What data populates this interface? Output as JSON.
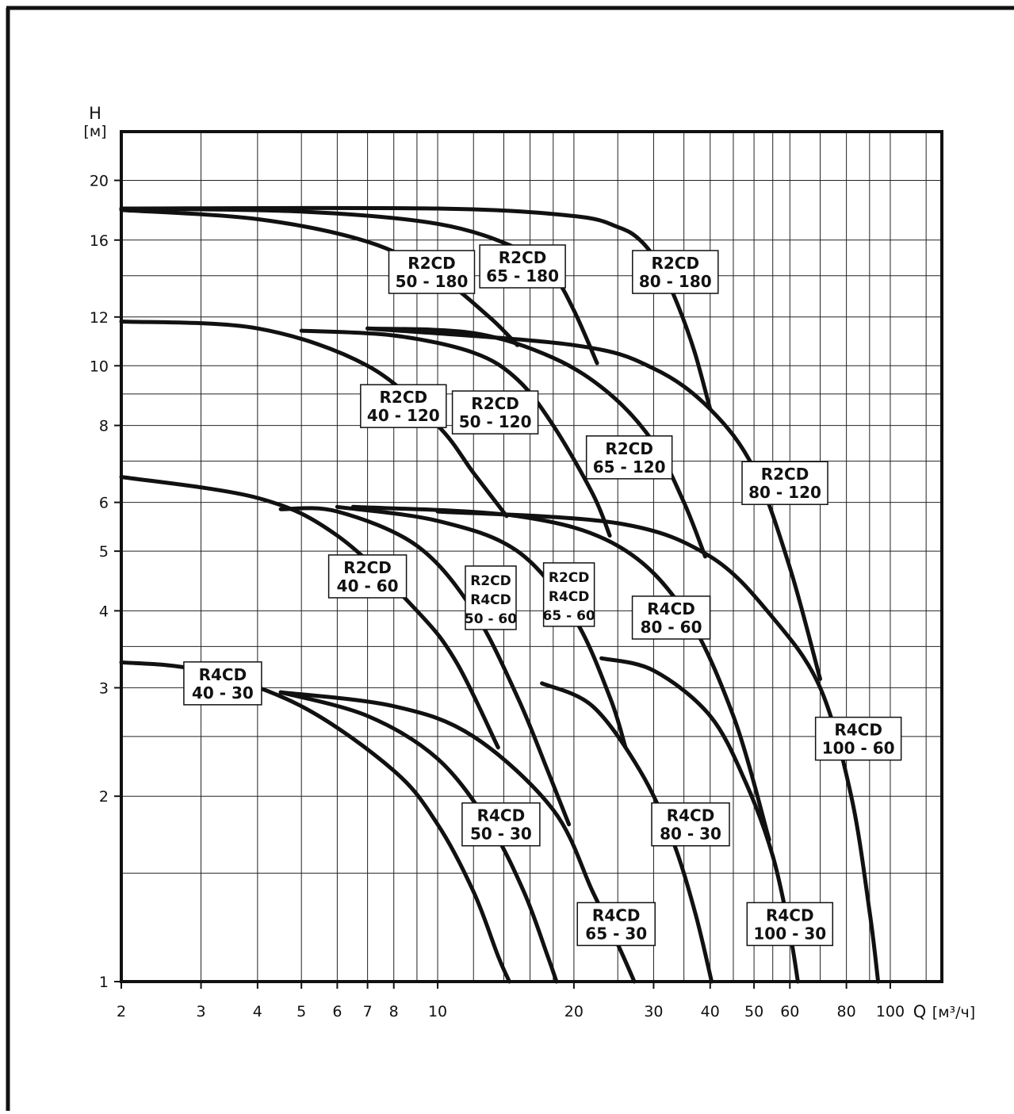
{
  "chart_data": {
    "type": "line",
    "title": "",
    "ylabel": "H",
    "yunit": "[м]",
    "xlabel": "Q",
    "xunit": "[м³/ч]",
    "xscale": "log",
    "yscale": "log",
    "xlim": [
      2,
      130
    ],
    "ylim": [
      1,
      24
    ],
    "grid": true,
    "x_major_ticks": [
      2,
      3,
      4,
      5,
      6,
      7,
      8,
      10,
      20,
      30,
      40,
      50,
      60,
      80,
      100
    ],
    "x_tick_labels": [
      "2",
      "3",
      "4",
      "5",
      "6",
      "7",
      "8",
      "10",
      "20",
      "30",
      "40",
      "50",
      "60",
      "80",
      "100"
    ],
    "x_minor_ticks": [
      9,
      12,
      14,
      16,
      18,
      25,
      35,
      45,
      55,
      70,
      90,
      120
    ],
    "y_major_ticks": [
      1,
      2,
      3,
      4,
      5,
      6,
      8,
      10,
      12,
      16,
      20
    ],
    "y_tick_labels": [
      "1",
      "2",
      "3",
      "4",
      "5",
      "6",
      "8",
      "10",
      "12",
      "16",
      "20"
    ],
    "y_minor_ticks": [
      1.5,
      2.5,
      3.5,
      7,
      9,
      14
    ],
    "series": [
      {
        "name": "R2CD 50 - 180",
        "x": [
          2,
          4,
          7,
          10,
          13,
          15
        ],
        "y": [
          17.9,
          17.3,
          15.9,
          14,
          12,
          10.8
        ]
      },
      {
        "name": "R2CD 65 - 180",
        "x": [
          2,
          5,
          10,
          15,
          18,
          20,
          22.5
        ],
        "y": [
          18,
          17.8,
          17,
          15.5,
          14,
          12.3,
          10.1
        ]
      },
      {
        "name": "R2CD 80 - 180",
        "x": [
          2,
          10,
          20,
          25,
          28,
          31,
          34,
          37,
          40
        ],
        "y": [
          18,
          18,
          17.5,
          16.8,
          16,
          14.5,
          12.5,
          10.5,
          8.5
        ]
      },
      {
        "name": "R2CD 40 - 120",
        "x": [
          2,
          4,
          7,
          10,
          12,
          14.2
        ],
        "y": [
          11.8,
          11.5,
          10,
          8,
          6.7,
          5.7
        ]
      },
      {
        "name": "R2CD 50 - 120",
        "x": [
          5,
          8,
          12,
          15,
          18,
          22,
          24
        ],
        "y": [
          11.4,
          11.2,
          10.5,
          9.5,
          8,
          6.2,
          5.3
        ]
      },
      {
        "name": "R2CD 65 - 120",
        "x": [
          7,
          12,
          18,
          24,
          30,
          35,
          39
        ],
        "y": [
          11.5,
          11.3,
          10.3,
          9,
          7.5,
          6,
          4.9
        ]
      },
      {
        "name": "R2CD 80 - 120",
        "x": [
          7,
          20,
          30,
          40,
          50,
          60,
          70
        ],
        "y": [
          11.5,
          10.8,
          9.9,
          8.5,
          6.8,
          4.7,
          3.1
        ]
      },
      {
        "name": "R2CD 40 - 60",
        "x": [
          2,
          4,
          6,
          9,
          11,
          13.6
        ],
        "y": [
          6.6,
          6.1,
          5.3,
          4,
          3.3,
          2.4
        ]
      },
      {
        "name": "R2CD R4CD 50 - 60",
        "x": [
          4.5,
          6,
          9,
          12,
          15,
          17.5,
          19.5
        ],
        "y": [
          5.85,
          5.8,
          5.1,
          4,
          2.9,
          2.2,
          1.8
        ]
      },
      {
        "name": "R2CD R4CD 65 - 60",
        "x": [
          6,
          10,
          15,
          20,
          24,
          26
        ],
        "y": [
          5.9,
          5.6,
          5,
          3.9,
          2.9,
          2.4
        ]
      },
      {
        "name": "R4CD 80 - 60",
        "x": [
          6.5,
          15,
          25,
          35,
          45,
          54
        ],
        "y": [
          5.9,
          5.7,
          5.1,
          4,
          2.7,
          1.7
        ]
      },
      {
        "name": "R4CD 100 - 60",
        "x": [
          10,
          25,
          40,
          55,
          70,
          82,
          90,
          94
        ],
        "y": [
          5.8,
          5.55,
          4.9,
          3.9,
          3,
          2,
          1.3,
          1
        ]
      },
      {
        "name": "R4CD 40 - 30",
        "x": [
          2,
          3,
          5,
          8,
          10,
          12,
          13.6,
          14.4
        ],
        "y": [
          3.3,
          3.2,
          2.8,
          2.2,
          1.8,
          1.4,
          1.1,
          1
        ]
      },
      {
        "name": "R4CD 50 - 30",
        "x": [
          4.5,
          7,
          10,
          13,
          15.5,
          17.5,
          18.3
        ],
        "y": [
          2.95,
          2.7,
          2.3,
          1.8,
          1.4,
          1.1,
          1
        ]
      },
      {
        "name": "R4CD 65 - 30",
        "x": [
          4.5,
          8,
          12,
          18,
          22,
          25,
          27.2
        ],
        "y": [
          2.95,
          2.8,
          2.5,
          1.9,
          1.4,
          1.15,
          1
        ]
      },
      {
        "name": "R4CD 80 - 30",
        "x": [
          17,
          22,
          28,
          33,
          37,
          40.3
        ],
        "y": [
          3.05,
          2.8,
          2.2,
          1.7,
          1.3,
          1
        ]
      },
      {
        "name": "R4CD 100 - 30",
        "x": [
          23,
          30,
          40,
          48,
          55,
          60,
          62.5
        ],
        "y": [
          3.35,
          3.2,
          2.7,
          2.1,
          1.6,
          1.2,
          1
        ]
      }
    ],
    "annotations": [
      {
        "lines": [
          "R2CD",
          "50 - 180"
        ],
        "x": 9.7,
        "y": 14.2
      },
      {
        "lines": [
          "R2CD",
          "65 - 180"
        ],
        "x": 15.4,
        "y": 14.5
      },
      {
        "lines": [
          "R2CD",
          "80 - 180"
        ],
        "x": 33.5,
        "y": 14.2
      },
      {
        "lines": [
          "R2CD",
          "40 - 120"
        ],
        "x": 8.4,
        "y": 8.6
      },
      {
        "lines": [
          "R2CD",
          "50 - 120"
        ],
        "x": 13.4,
        "y": 8.4
      },
      {
        "lines": [
          "R2CD",
          "65 - 120"
        ],
        "x": 26.5,
        "y": 7.1
      },
      {
        "lines": [
          "R2CD",
          "80 - 120"
        ],
        "x": 58.5,
        "y": 6.45
      },
      {
        "lines": [
          "R2CD",
          "40 - 60"
        ],
        "x": 7,
        "y": 4.55
      },
      {
        "lines": [
          "R2CD",
          "R4CD",
          "50 - 60"
        ],
        "x": 13.1,
        "y": 4.2
      },
      {
        "lines": [
          "R2CD",
          "R4CD",
          "65 - 60"
        ],
        "x": 19.5,
        "y": 4.25
      },
      {
        "lines": [
          "R4CD",
          "80 - 60"
        ],
        "x": 32.8,
        "y": 3.9
      },
      {
        "lines": [
          "R4CD",
          "40 - 30"
        ],
        "x": 3.35,
        "y": 3.05
      },
      {
        "lines": [
          "R4CD",
          "100 - 60"
        ],
        "x": 85,
        "y": 2.48
      },
      {
        "lines": [
          "R4CD",
          "50 - 30"
        ],
        "x": 13.8,
        "y": 1.8
      },
      {
        "lines": [
          "R4CD",
          "80 - 30"
        ],
        "x": 36.2,
        "y": 1.8
      },
      {
        "lines": [
          "R4CD",
          "65 - 30"
        ],
        "x": 24.8,
        "y": 1.24
      },
      {
        "lines": [
          "R4CD",
          "100 - 30"
        ],
        "x": 60,
        "y": 1.24
      }
    ]
  }
}
